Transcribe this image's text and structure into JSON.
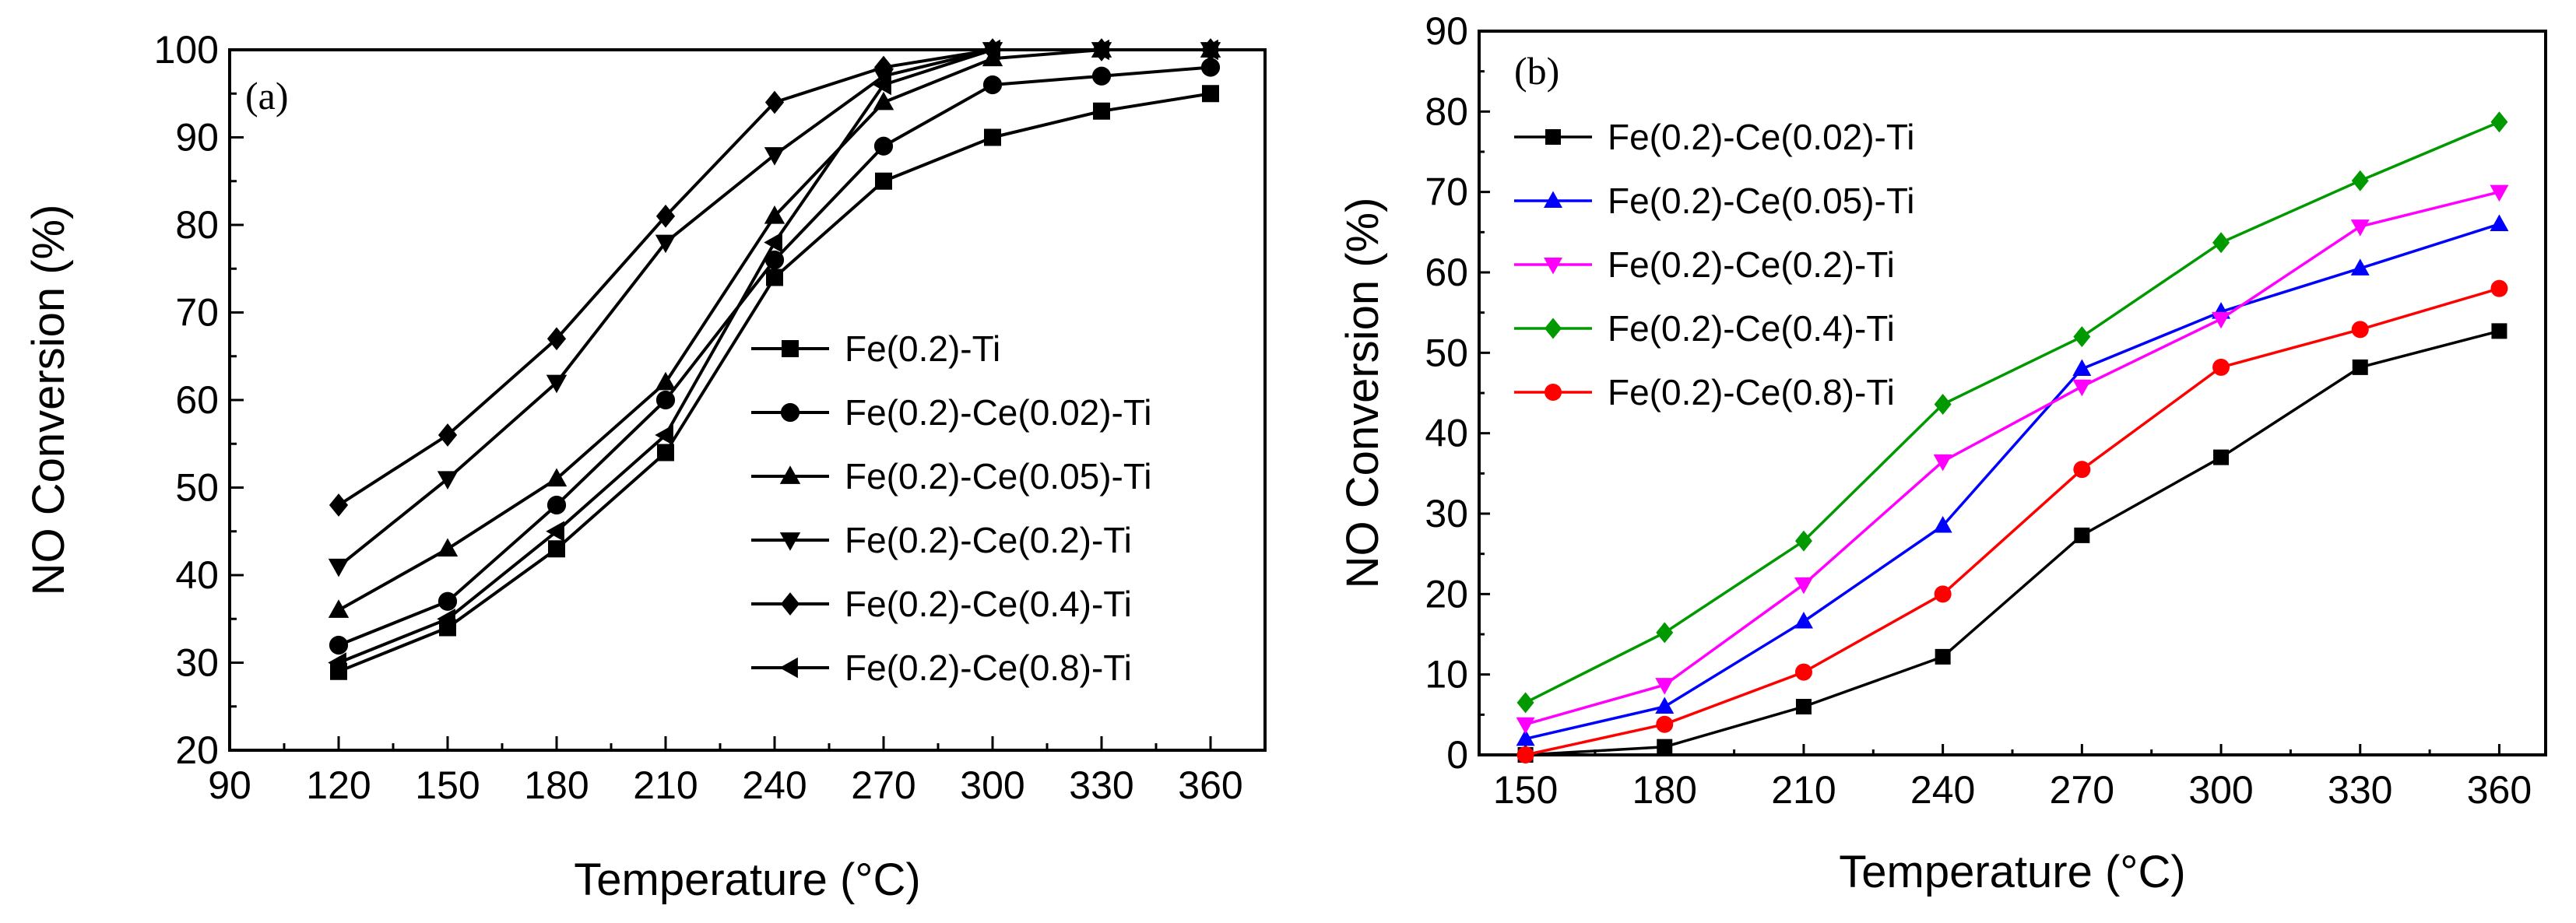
{
  "chart_data": [
    {
      "panel": "a",
      "type": "line",
      "panel_label": "(a)",
      "xlabel": "Temperature (°C)",
      "ylabel": "NO Conversion (%)",
      "xlim": [
        90,
        375
      ],
      "ylim": [
        20,
        100
      ],
      "xticks": [
        90,
        120,
        150,
        180,
        210,
        240,
        270,
        300,
        330,
        360
      ],
      "yticks": [
        20,
        30,
        40,
        50,
        60,
        70,
        80,
        90,
        100
      ],
      "grid": false,
      "legend_position": "center-right",
      "x": [
        120,
        150,
        180,
        210,
        240,
        270,
        300,
        330,
        360
      ],
      "series": [
        {
          "name": "Fe(0.2)-Ti",
          "marker": "square",
          "color": "#000000",
          "values": [
            29,
            34,
            43,
            54,
            74,
            85,
            90,
            93,
            95
          ]
        },
        {
          "name": "Fe(0.2)-Ce(0.02)-Ti",
          "marker": "circle",
          "color": "#000000",
          "values": [
            32,
            37,
            48,
            60,
            76,
            89,
            96,
            97,
            98
          ]
        },
        {
          "name": "Fe(0.2)-Ce(0.05)-Ti",
          "marker": "triangle-up",
          "color": "#000000",
          "values": [
            36,
            43,
            51,
            62,
            81,
            94,
            99,
            100,
            100
          ]
        },
        {
          "name": "Fe(0.2)-Ce(0.2)-Ti",
          "marker": "triangle-down",
          "color": "#000000",
          "values": [
            41,
            51,
            62,
            78,
            88,
            97,
            100,
            100,
            100
          ]
        },
        {
          "name": "Fe(0.2)-Ce(0.4)-Ti",
          "marker": "diamond",
          "color": "#000000",
          "values": [
            48,
            56,
            67,
            81,
            94,
            98,
            100,
            100,
            100
          ]
        },
        {
          "name": "Fe(0.2)-Ce(0.8)-Ti",
          "marker": "triangle-left",
          "color": "#000000",
          "values": [
            30,
            35,
            45,
            56,
            78,
            96,
            100,
            100,
            100
          ]
        }
      ]
    },
    {
      "panel": "b",
      "type": "line",
      "panel_label": "(b)",
      "xlabel": "Temperature (°C)",
      "ylabel": "NO Conversion (%)",
      "xlim": [
        140,
        370
      ],
      "ylim": [
        0,
        90
      ],
      "xticks": [
        150,
        180,
        210,
        240,
        270,
        300,
        330,
        360
      ],
      "yticks": [
        0,
        10,
        20,
        30,
        40,
        50,
        60,
        70,
        80,
        90
      ],
      "grid": false,
      "legend_position": "top-left",
      "x": [
        150,
        180,
        210,
        240,
        270,
        300,
        330,
        360
      ],
      "series": [
        {
          "name": "Fe(0.2)-Ce(0.02)-Ti",
          "marker": "square",
          "color": "#000000",
          "values": [
            0,
            1,
            6,
            12.2,
            27.3,
            37,
            48.2,
            52.7
          ]
        },
        {
          "name": "Fe(0.2)-Ce(0.05)-Ti",
          "marker": "triangle-up",
          "color": "#0000ff",
          "values": [
            2,
            6,
            16.6,
            28.5,
            48,
            55.1,
            60.5,
            66
          ]
        },
        {
          "name": "Fe(0.2)-Ce(0.2)-Ti",
          "marker": "triangle-down",
          "color": "#ff00ff",
          "values": [
            3.8,
            8.7,
            21.2,
            36.5,
            45.8,
            54.2,
            65.7,
            70
          ]
        },
        {
          "name": "Fe(0.2)-Ce(0.4)-Ti",
          "marker": "diamond",
          "color": "#009900",
          "values": [
            6.5,
            15.2,
            26.6,
            43.6,
            52,
            63.7,
            71.4,
            78.7
          ]
        },
        {
          "name": "Fe(0.2)-Ce(0.8)-Ti",
          "marker": "circle",
          "color": "#ff0000",
          "values": [
            0,
            3.8,
            10.3,
            20,
            35.5,
            48.2,
            52.9,
            58
          ]
        }
      ]
    }
  ]
}
